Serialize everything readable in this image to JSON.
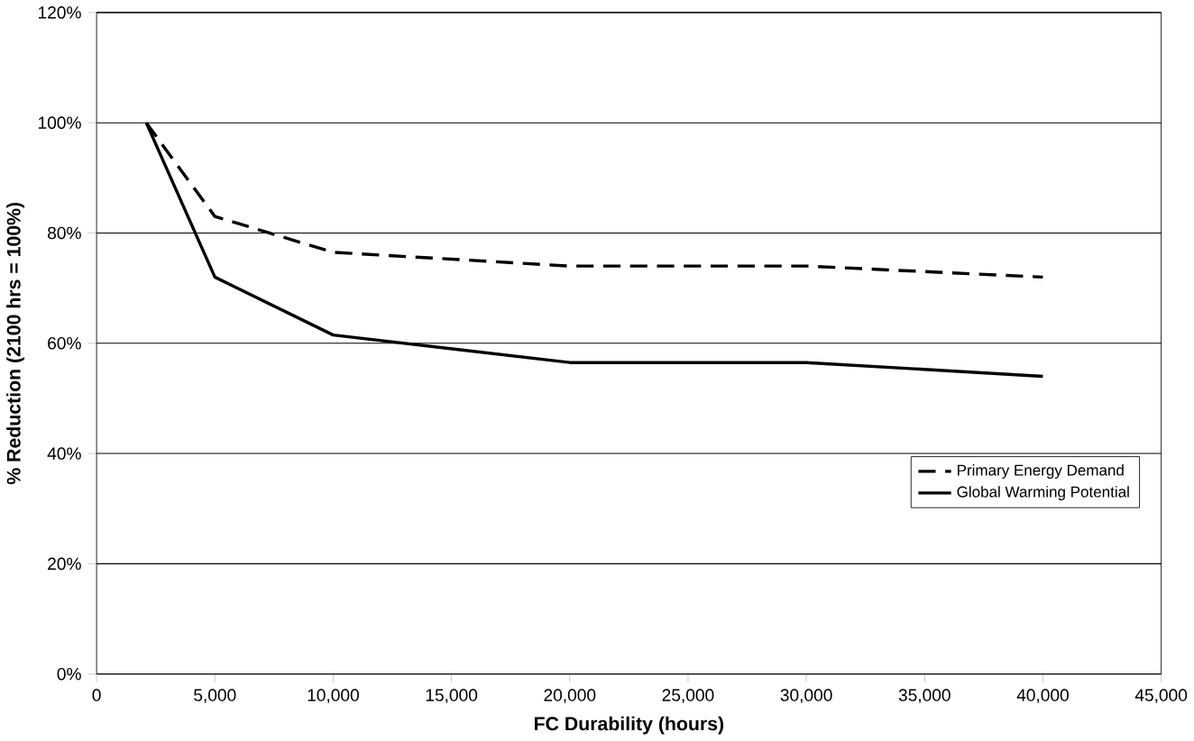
{
  "chart_data": {
    "type": "line",
    "xlabel": "FC Durability (hours)",
    "ylabel": "% Reduction (2100 hrs = 100%)",
    "xlim": [
      0,
      45000
    ],
    "xticks": [
      {
        "value": 0,
        "label": "0"
      },
      {
        "value": 5000,
        "label": "5,000"
      },
      {
        "value": 10000,
        "label": "10,000"
      },
      {
        "value": 15000,
        "label": "15,000"
      },
      {
        "value": 20000,
        "label": "20,000"
      },
      {
        "value": 25000,
        "label": "25,000"
      },
      {
        "value": 30000,
        "label": "30,000"
      },
      {
        "value": 35000,
        "label": "35,000"
      },
      {
        "value": 40000,
        "label": "40,000"
      },
      {
        "value": 45000,
        "label": "45,000"
      }
    ],
    "ylim": [
      0,
      120
    ],
    "yticks": [
      {
        "value": 0,
        "label": "0%"
      },
      {
        "value": 20,
        "label": "20%"
      },
      {
        "value": 40,
        "label": "40%"
      },
      {
        "value": 60,
        "label": "60%"
      },
      {
        "value": 80,
        "label": "80%"
      },
      {
        "value": 100,
        "label": "100%"
      },
      {
        "value": 120,
        "label": "120%"
      }
    ],
    "grid": "y",
    "legend": "right",
    "marker": "none",
    "series": [
      {
        "name": "Primary Energy Demand",
        "color": "#000000",
        "line_style": "dashed",
        "x": [
          2100,
          5000,
          10000,
          20000,
          30000,
          40000
        ],
        "values": [
          100,
          83,
          76.5,
          74,
          74,
          72
        ]
      },
      {
        "name": "Global Warming Potential",
        "color": "#000000",
        "line_style": "solid",
        "x": [
          2100,
          5000,
          10000,
          20000,
          30000,
          40000
        ],
        "values": [
          100,
          72,
          61.5,
          56.5,
          56.5,
          54
        ]
      }
    ]
  }
}
